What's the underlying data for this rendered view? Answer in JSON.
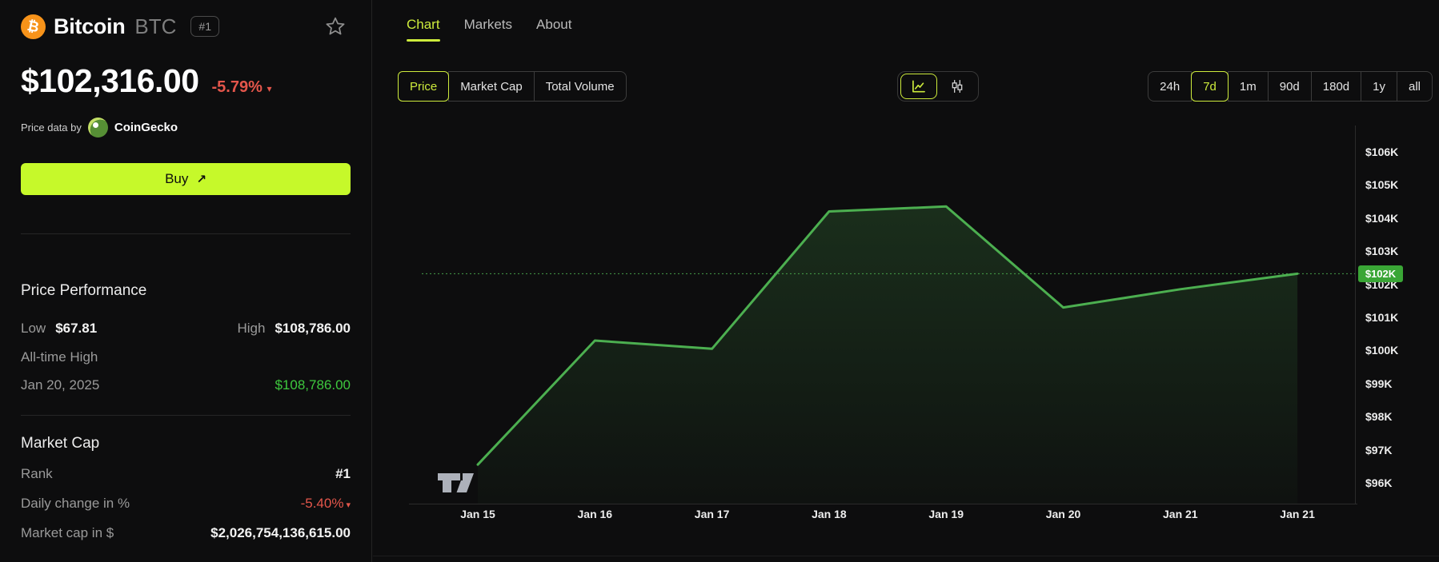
{
  "coin": {
    "name": "Bitcoin",
    "symbol": "BTC",
    "rank_badge": "#1",
    "price": "$102,316.00",
    "change_pct": "-5.79%",
    "down_arrow": "▾",
    "attribution_prefix": "Price data by",
    "attribution_brand": "CoinGecko",
    "buy_label": "Buy",
    "buy_arrow": "↗"
  },
  "price_performance": {
    "title": "Price Performance",
    "low_label": "Low",
    "low_value": "$67.81",
    "high_label": "High",
    "high_value": "$108,786.00",
    "ath_label": "All-time High",
    "ath_date": "Jan 20, 2025",
    "ath_value": "$108,786.00"
  },
  "market_cap": {
    "title": "Market Cap",
    "rows": [
      {
        "label": "Rank",
        "value": "#1",
        "style": "white"
      },
      {
        "label": "Daily change in %",
        "value": "-5.40%",
        "style": "red",
        "arrow": "▾"
      },
      {
        "label": "Market cap in $",
        "value": "$2,026,754,136,615.00",
        "style": "white"
      }
    ]
  },
  "tabs": [
    {
      "label": "Chart",
      "active": true
    },
    {
      "label": "Markets",
      "active": false
    },
    {
      "label": "About",
      "active": false
    }
  ],
  "metric_toggle": [
    {
      "label": "Price",
      "active": true
    },
    {
      "label": "Market Cap",
      "active": false
    },
    {
      "label": "Total Volume",
      "active": false
    }
  ],
  "chart_type_toggle": [
    {
      "icon": "line-chart-icon",
      "active": true
    },
    {
      "icon": "candlestick-icon",
      "active": false
    }
  ],
  "ranges": [
    {
      "label": "24h",
      "active": false
    },
    {
      "label": "7d",
      "active": true
    },
    {
      "label": "1m",
      "active": false
    },
    {
      "label": "90d",
      "active": false
    },
    {
      "label": "180d",
      "active": false
    },
    {
      "label": "1y",
      "active": false
    },
    {
      "label": "all",
      "active": false
    }
  ],
  "colors": {
    "accent_lime": "#cdeb3c",
    "buy_button": "#c6f92a",
    "line_green": "#4caf50",
    "text_green": "#3ec83e",
    "negative_red": "#e4564b",
    "price_badge_green": "#3aa636",
    "bitcoin_orange": "#f7931a",
    "background": "#0d0d0e"
  },
  "chart_data": {
    "type": "area",
    "title": "",
    "x": [
      "Jan 15",
      "Jan 16",
      "Jan 17",
      "Jan 18",
      "Jan 19",
      "Jan 20",
      "Jan 21",
      "Jan 21"
    ],
    "values_usd_k": [
      96.55,
      100.3,
      100.05,
      104.2,
      104.35,
      101.3,
      101.85,
      102.32
    ],
    "y_ticks": [
      "$106K",
      "$105K",
      "$104K",
      "$103K",
      "$102K",
      "$101K",
      "$100K",
      "$99K",
      "$98K",
      "$97K",
      "$96K"
    ],
    "ylim_k": [
      95.4,
      107.1
    ],
    "current_price_k": 102.32,
    "current_price_label": "$102K",
    "current_price_line": "dotted",
    "grid": false,
    "legend": false,
    "watermark": "TradingView"
  }
}
